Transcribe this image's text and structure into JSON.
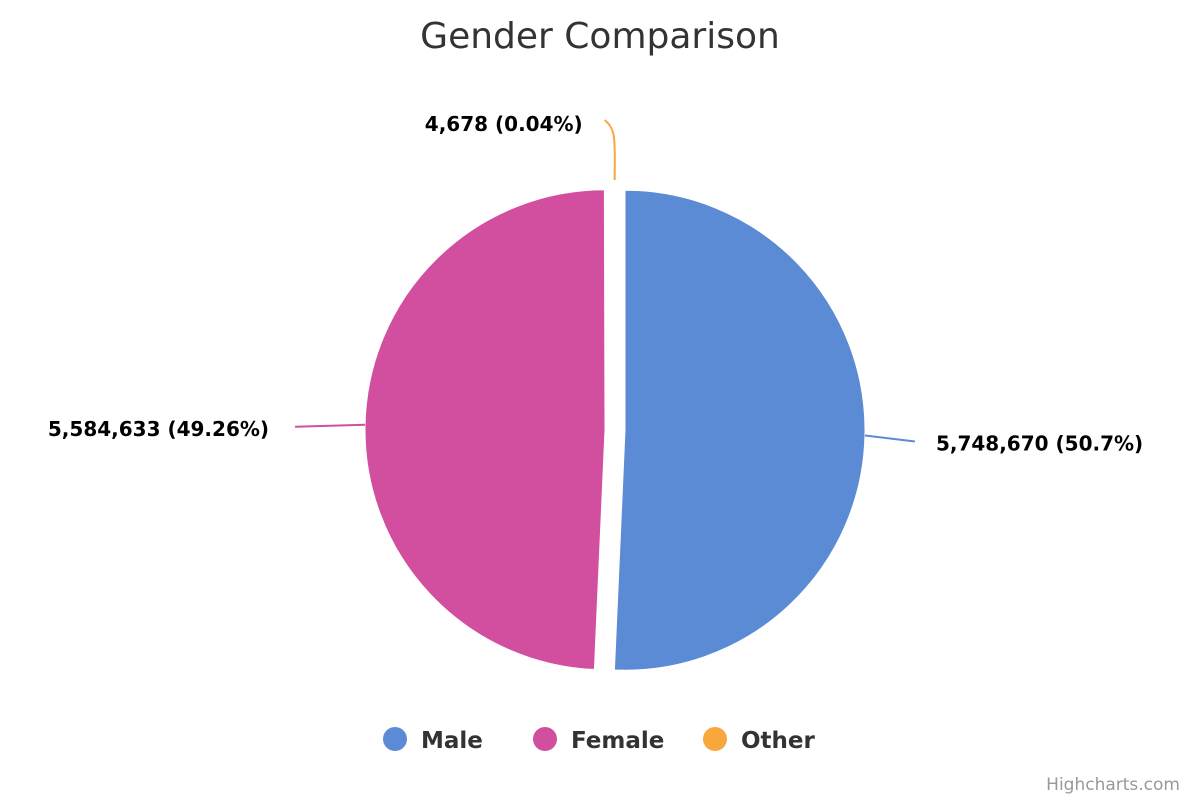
{
  "chart_data": {
    "type": "pie",
    "title": "Gender Comparison",
    "slices": [
      {
        "name": "Male",
        "value": 5748670,
        "label": "5,748,670 (50.7%)",
        "color": "#5b8bd4"
      },
      {
        "name": "Female",
        "value": 5584633,
        "label": "5,584,633 (49.26%)",
        "color": "#d24e9e"
      },
      {
        "name": "Other",
        "value": 4678,
        "label": "4,678 (0.04%)",
        "color": "#f8a73c"
      }
    ],
    "legend": {
      "position": "bottom-center"
    }
  },
  "credit": "Highcharts.com"
}
